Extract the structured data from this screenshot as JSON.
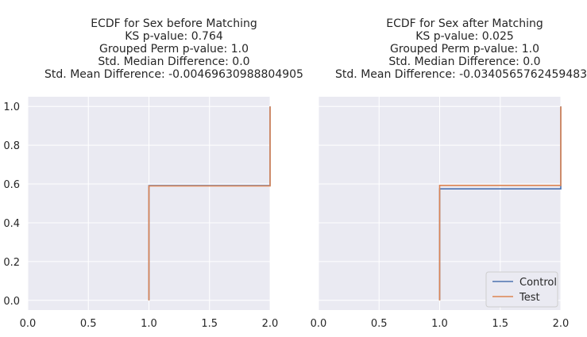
{
  "chart_data": [
    {
      "type": "line",
      "step": "post",
      "title_lines": [
        "ECDF for Sex before Matching",
        "KS p-value: 0.764",
        "Grouped Perm p-value: 1.0",
        "Std. Median Difference: 0.0",
        "Std. Mean Difference: -0.00469630988804905"
      ],
      "xlim": [
        0.0,
        2.0
      ],
      "ylim": [
        -0.05,
        1.05
      ],
      "xticks": [
        "0.0",
        "0.5",
        "1.0",
        "1.5",
        "2.0"
      ],
      "yticks": [
        "0.0",
        "0.2",
        "0.4",
        "0.6",
        "0.8",
        "1.0"
      ],
      "grid": true,
      "series": [
        {
          "name": "Control",
          "color": "#4c72b0",
          "x": [
            1.0,
            1.0,
            2.0,
            2.0
          ],
          "y": [
            0.0,
            0.592,
            0.592,
            1.0
          ]
        },
        {
          "name": "Test",
          "color": "#dd8452",
          "x": [
            1.0,
            1.0,
            2.0,
            2.0
          ],
          "y": [
            0.0,
            0.59,
            0.59,
            1.0
          ]
        }
      ]
    },
    {
      "type": "line",
      "step": "post",
      "title_lines": [
        "ECDF for Sex after Matching",
        "KS p-value: 0.025",
        "Grouped Perm p-value: 1.0",
        "Std. Median Difference: 0.0",
        "Std. Mean Difference: -0.03405657624594832"
      ],
      "xlim": [
        0.0,
        2.0
      ],
      "ylim": [
        -0.05,
        1.05
      ],
      "xticks": [
        "0.0",
        "0.5",
        "1.0",
        "1.5",
        "2.0"
      ],
      "yticks": [],
      "grid": true,
      "legend": "bottom-right",
      "series": [
        {
          "name": "Control",
          "color": "#4c72b0",
          "x": [
            1.0,
            1.0,
            2.0,
            2.0
          ],
          "y": [
            0.0,
            0.575,
            0.575,
            1.0
          ]
        },
        {
          "name": "Test",
          "color": "#dd8452",
          "x": [
            1.0,
            1.0,
            2.0,
            2.0
          ],
          "y": [
            0.0,
            0.593,
            0.593,
            1.0
          ]
        }
      ]
    }
  ]
}
